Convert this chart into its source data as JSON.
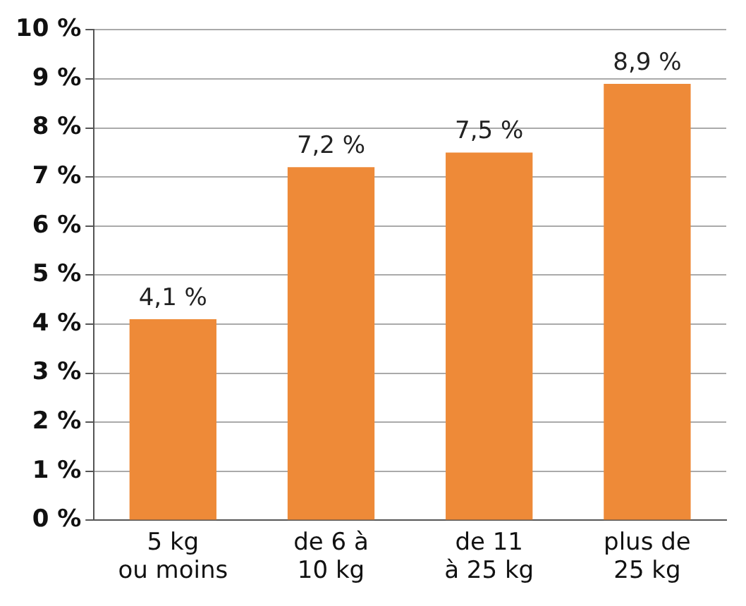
{
  "chart_data": {
    "type": "bar",
    "categories": [
      "5 kg\nou moins",
      "de 6 à\n10 kg",
      "de 11\nà 25 kg",
      "plus de\n25 kg"
    ],
    "values": [
      4.1,
      7.2,
      7.5,
      8.9
    ],
    "color": "#ee8a38",
    "value_labels": [
      "4,1 %",
      "7,2 %",
      "7,5 %",
      "8,9 %"
    ],
    "ylim": [
      0,
      10
    ],
    "yticks": [
      {
        "value": 0,
        "label": "0 %"
      },
      {
        "value": 1,
        "label": "1 %"
      },
      {
        "value": 2,
        "label": "2 %"
      },
      {
        "value": 3,
        "label": "3 %"
      },
      {
        "value": 4,
        "label": "4 %"
      },
      {
        "value": 5,
        "label": "5 %"
      },
      {
        "value": 6,
        "label": "6 %"
      },
      {
        "value": 7,
        "label": "7 %"
      },
      {
        "value": 8,
        "label": "8 %"
      },
      {
        "value": 9,
        "label": "9 %"
      },
      {
        "value": 10,
        "label": "10 %"
      }
    ],
    "grid": "y",
    "legend": false
  }
}
